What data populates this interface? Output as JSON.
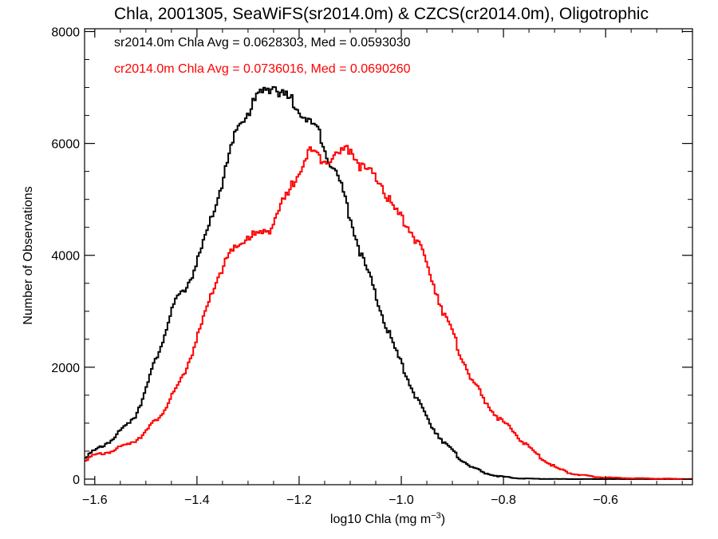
{
  "chart_data": {
    "type": "line",
    "title": "Chla, 2001305, SeaWiFS(sr2014.0m) & CZCS(cr2014.0m), Oligotrophic",
    "xlabel_main": "log10 Chla (mg m",
    "xlabel_sup": "−3",
    "xlabel_end": ")",
    "ylabel": "Number of Observations",
    "xlim": [
      -1.62,
      -0.43
    ],
    "ylim": [
      -100,
      8050
    ],
    "x_ticks": [
      -1.6,
      -1.4,
      -1.2,
      -1.0,
      -0.8,
      -0.6
    ],
    "x_tick_labels": [
      "−1.6",
      "−1.4",
      "−1.2",
      "−1.0",
      "−0.8",
      "−0.6"
    ],
    "x_minor_step": 0.05,
    "y_ticks": [
      0,
      2000,
      4000,
      6000,
      8000
    ],
    "y_tick_labels": [
      "0",
      "2000",
      "4000",
      "6000",
      "8000"
    ],
    "y_minor_step": 500,
    "colors": {
      "sr": "#000000",
      "cr": "#ff0000",
      "axes": "#000000"
    },
    "annotations": [
      {
        "text": "sr2014.0m Chla Avg = 0.0628303, Med = 0.0593030",
        "color": "#000000"
      },
      {
        "text": "cr2014.0m Chla Avg = 0.0736016, Med = 0.0690260",
        "color": "#ff0000"
      }
    ],
    "series": [
      {
        "key": "sr",
        "color": "#000000",
        "x": [
          -1.62,
          -1.6,
          -1.56,
          -1.52,
          -1.5,
          -1.48,
          -1.46,
          -1.44,
          -1.42,
          -1.4,
          -1.38,
          -1.36,
          -1.34,
          -1.32,
          -1.3,
          -1.28,
          -1.26,
          -1.25,
          -1.24,
          -1.22,
          -1.2,
          -1.18,
          -1.16,
          -1.14,
          -1.12,
          -1.1,
          -1.08,
          -1.06,
          -1.04,
          -1.02,
          -1.0,
          -0.98,
          -0.96,
          -0.94,
          -0.92,
          -0.9,
          -0.88,
          -0.86,
          -0.84,
          -0.82,
          -0.8,
          -0.78,
          -0.76,
          -0.74,
          -0.72,
          -0.7,
          -0.68,
          -0.66,
          -0.64,
          -0.6,
          -0.55,
          -0.5,
          -0.45,
          -0.43
        ],
        "y": [
          400,
          500,
          750,
          1150,
          1600,
          2150,
          2700,
          3200,
          3450,
          3850,
          4400,
          5000,
          5650,
          6300,
          6550,
          6850,
          7000,
          7100,
          6850,
          6800,
          6650,
          6350,
          6200,
          5700,
          5300,
          4700,
          4050,
          3550,
          3000,
          2500,
          2050,
          1650,
          1250,
          950,
          700,
          500,
          330,
          210,
          120,
          70,
          40,
          20,
          10,
          6,
          4,
          2,
          1,
          0,
          0,
          0,
          0,
          0,
          0,
          0
        ]
      },
      {
        "key": "cr",
        "color": "#ff0000",
        "x": [
          -1.62,
          -1.6,
          -1.56,
          -1.52,
          -1.5,
          -1.48,
          -1.46,
          -1.44,
          -1.42,
          -1.4,
          -1.38,
          -1.36,
          -1.34,
          -1.32,
          -1.3,
          -1.28,
          -1.26,
          -1.24,
          -1.22,
          -1.2,
          -1.18,
          -1.16,
          -1.14,
          -1.12,
          -1.1,
          -1.08,
          -1.06,
          -1.04,
          -1.02,
          -1.0,
          -0.98,
          -0.96,
          -0.94,
          -0.92,
          -0.9,
          -0.88,
          -0.86,
          -0.84,
          -0.82,
          -0.8,
          -0.78,
          -0.76,
          -0.74,
          -0.72,
          -0.7,
          -0.68,
          -0.66,
          -0.64,
          -0.62,
          -0.6,
          -0.55,
          -0.5,
          -0.45,
          -0.43
        ],
        "y": [
          350,
          420,
          520,
          700,
          850,
          1050,
          1300,
          1600,
          2000,
          2500,
          3050,
          3600,
          3950,
          4150,
          4350,
          4350,
          4450,
          4800,
          5100,
          5550,
          5850,
          5750,
          5750,
          5800,
          5950,
          5600,
          5450,
          5300,
          4900,
          4650,
          4450,
          4050,
          3600,
          3050,
          2600,
          2150,
          1750,
          1450,
          1200,
          1000,
          850,
          650,
          480,
          340,
          220,
          140,
          90,
          60,
          40,
          28,
          15,
          8,
          4,
          2
        ]
      }
    ]
  }
}
